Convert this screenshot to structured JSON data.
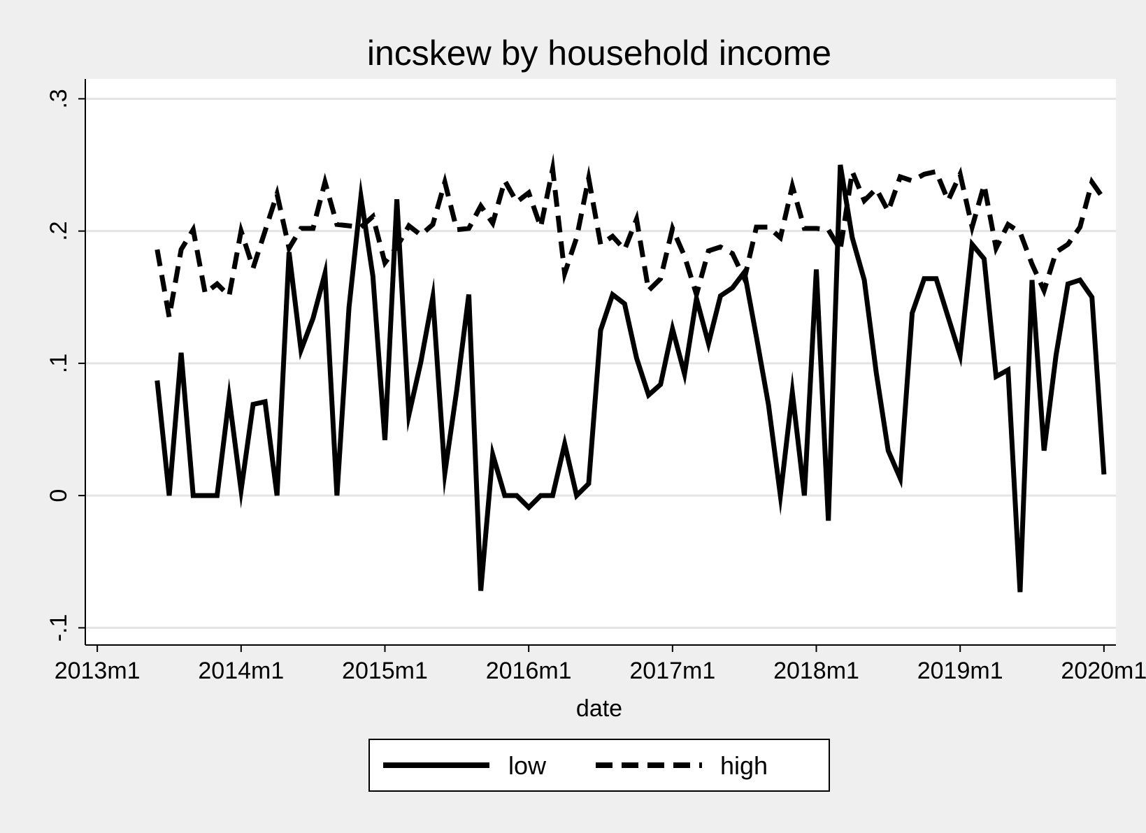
{
  "chart_data": {
    "type": "line",
    "title": "incskew by household income",
    "xlabel": "date",
    "ylabel": "",
    "x_ticks": [
      "2013m1",
      "2014m1",
      "2015m1",
      "2016m1",
      "2017m1",
      "2018m1",
      "2019m1",
      "2020m1"
    ],
    "y_ticks": [
      "-.1",
      "0",
      ".1",
      ".2",
      ".3"
    ],
    "y_tick_values": [
      -0.1,
      0,
      0.1,
      0.2,
      0.3
    ],
    "ylim": [
      -0.113,
      0.315
    ],
    "xlim": [
      "2012m12",
      "2020m2"
    ],
    "grid": true,
    "legend_position": "bottom",
    "series": [
      {
        "name": "low",
        "style": "solid",
        "color": "#000000",
        "points": [
          [
            "2013m6",
            0.087
          ],
          [
            "2013m7",
            0.0
          ],
          [
            "2013m8",
            0.108
          ],
          [
            "2013m9",
            0.0
          ],
          [
            "2013m10",
            0.0
          ],
          [
            "2013m11",
            0.0
          ],
          [
            "2013m12",
            0.074
          ],
          [
            "2014m1",
            0.004
          ],
          [
            "2014m2",
            0.069
          ],
          [
            "2014m3",
            0.071
          ],
          [
            "2014m4",
            0.0
          ],
          [
            "2014m5",
            0.184
          ],
          [
            "2014m6",
            0.11
          ],
          [
            "2014m7",
            0.134
          ],
          [
            "2014m8",
            0.168
          ],
          [
            "2014m9",
            0.0
          ],
          [
            "2014m10",
            0.142
          ],
          [
            "2014m11",
            0.226
          ],
          [
            "2014m12",
            0.166
          ],
          [
            "2015m1",
            0.042
          ],
          [
            "2015m2",
            0.224
          ],
          [
            "2015m3",
            0.061
          ],
          [
            "2015m4",
            0.101
          ],
          [
            "2015m5",
            0.15
          ],
          [
            "2015m6",
            0.017
          ],
          [
            "2015m7",
            0.08
          ],
          [
            "2015m8",
            0.152
          ],
          [
            "2015m9",
            -0.072
          ],
          [
            "2015m10",
            0.031
          ],
          [
            "2015m11",
            0.0
          ],
          [
            "2015m12",
            0.0
          ],
          [
            "2016m1",
            -0.009
          ],
          [
            "2016m2",
            0.0
          ],
          [
            "2016m3",
            0.0
          ],
          [
            "2016m4",
            0.039
          ],
          [
            "2016m5",
            0.0
          ],
          [
            "2016m6",
            0.009
          ],
          [
            "2016m7",
            0.125
          ],
          [
            "2016m8",
            0.152
          ],
          [
            "2016m9",
            0.145
          ],
          [
            "2016m10",
            0.104
          ],
          [
            "2016m11",
            0.076
          ],
          [
            "2016m12",
            0.084
          ],
          [
            "2017m1",
            0.126
          ],
          [
            "2017m2",
            0.092
          ],
          [
            "2017m3",
            0.149
          ],
          [
            "2017m4",
            0.115
          ],
          [
            "2017m5",
            0.151
          ],
          [
            "2017m6",
            0.157
          ],
          [
            "2017m7",
            0.169
          ],
          [
            "2017m8",
            0.12
          ],
          [
            "2017m9",
            0.069
          ],
          [
            "2017m10",
            0.0
          ],
          [
            "2017m11",
            0.078
          ],
          [
            "2017m12",
            0.0
          ],
          [
            "2018m1",
            0.171
          ],
          [
            "2018m2",
            -0.019
          ],
          [
            "2018m3",
            0.25
          ],
          [
            "2018m4",
            0.195
          ],
          [
            "2018m5",
            0.163
          ],
          [
            "2018m6",
            0.093
          ],
          [
            "2018m7",
            0.034
          ],
          [
            "2018m8",
            0.013
          ],
          [
            "2018m9",
            0.138
          ],
          [
            "2018m10",
            0.164
          ],
          [
            "2018m11",
            0.164
          ],
          [
            "2018m12",
            0.135
          ],
          [
            "2019m1",
            0.106
          ],
          [
            "2019m2",
            0.19
          ],
          [
            "2019m3",
            0.179
          ],
          [
            "2019m4",
            0.09
          ],
          [
            "2019m5",
            0.095
          ],
          [
            "2019m6",
            -0.073
          ],
          [
            "2019m7",
            0.163
          ],
          [
            "2019m8",
            0.034
          ],
          [
            "2019m9",
            0.106
          ],
          [
            "2019m10",
            0.16
          ],
          [
            "2019m11",
            0.163
          ],
          [
            "2019m12",
            0.15
          ],
          [
            "2020m1",
            0.016
          ]
        ]
      },
      {
        "name": "high",
        "style": "dashed",
        "color": "#000000",
        "points": [
          [
            "2013m6",
            0.186
          ],
          [
            "2013m7",
            0.135
          ],
          [
            "2013m8",
            0.186
          ],
          [
            "2013m9",
            0.201
          ],
          [
            "2013m10",
            0.153
          ],
          [
            "2013m11",
            0.16
          ],
          [
            "2013m12",
            0.151
          ],
          [
            "2014m1",
            0.2
          ],
          [
            "2014m2",
            0.172
          ],
          [
            "2014m3",
            0.2
          ],
          [
            "2014m4",
            0.228
          ],
          [
            "2014m5",
            0.187
          ],
          [
            "2014m6",
            0.202
          ],
          [
            "2014m7",
            0.202
          ],
          [
            "2014m8",
            0.237
          ],
          [
            "2014m9",
            0.205
          ],
          [
            "2014m10",
            0.204
          ],
          [
            "2014m11",
            0.203
          ],
          [
            "2014m12",
            0.211
          ],
          [
            "2015m1",
            0.176
          ],
          [
            "2015m2",
            0.188
          ],
          [
            "2015m3",
            0.204
          ],
          [
            "2015m4",
            0.197
          ],
          [
            "2015m5",
            0.205
          ],
          [
            "2015m6",
            0.237
          ],
          [
            "2015m7",
            0.201
          ],
          [
            "2015m8",
            0.202
          ],
          [
            "2015m9",
            0.219
          ],
          [
            "2015m10",
            0.206
          ],
          [
            "2015m11",
            0.238
          ],
          [
            "2015m12",
            0.222
          ],
          [
            "2016m1",
            0.229
          ],
          [
            "2016m2",
            0.203
          ],
          [
            "2016m3",
            0.247
          ],
          [
            "2016m4",
            0.168
          ],
          [
            "2016m5",
            0.195
          ],
          [
            "2016m6",
            0.24
          ],
          [
            "2016m7",
            0.19
          ],
          [
            "2016m8",
            0.196
          ],
          [
            "2016m9",
            0.186
          ],
          [
            "2016m10",
            0.209
          ],
          [
            "2016m11",
            0.155
          ],
          [
            "2016m12",
            0.164
          ],
          [
            "2017m1",
            0.202
          ],
          [
            "2017m2",
            0.181
          ],
          [
            "2017m3",
            0.152
          ],
          [
            "2017m4",
            0.185
          ],
          [
            "2017m5",
            0.188
          ],
          [
            "2017m6",
            0.183
          ],
          [
            "2017m7",
            0.164
          ],
          [
            "2017m8",
            0.203
          ],
          [
            "2017m9",
            0.203
          ],
          [
            "2017m10",
            0.195
          ],
          [
            "2017m11",
            0.234
          ],
          [
            "2017m12",
            0.202
          ],
          [
            "2018m1",
            0.202
          ],
          [
            "2018m2",
            0.201
          ],
          [
            "2018m3",
            0.186
          ],
          [
            "2018m4",
            0.245
          ],
          [
            "2018m5",
            0.223
          ],
          [
            "2018m6",
            0.232
          ],
          [
            "2018m7",
            0.215
          ],
          [
            "2018m8",
            0.241
          ],
          [
            "2018m9",
            0.238
          ],
          [
            "2018m10",
            0.243
          ],
          [
            "2018m11",
            0.245
          ],
          [
            "2018m12",
            0.223
          ],
          [
            "2019m1",
            0.243
          ],
          [
            "2019m2",
            0.203
          ],
          [
            "2019m3",
            0.235
          ],
          [
            "2019m4",
            0.187
          ],
          [
            "2019m5",
            0.205
          ],
          [
            "2019m6",
            0.199
          ],
          [
            "2019m7",
            0.175
          ],
          [
            "2019m8",
            0.155
          ],
          [
            "2019m9",
            0.184
          ],
          [
            "2019m10",
            0.19
          ],
          [
            "2019m11",
            0.203
          ],
          [
            "2019m12",
            0.237
          ],
          [
            "2020m1",
            0.224
          ]
        ]
      }
    ]
  }
}
